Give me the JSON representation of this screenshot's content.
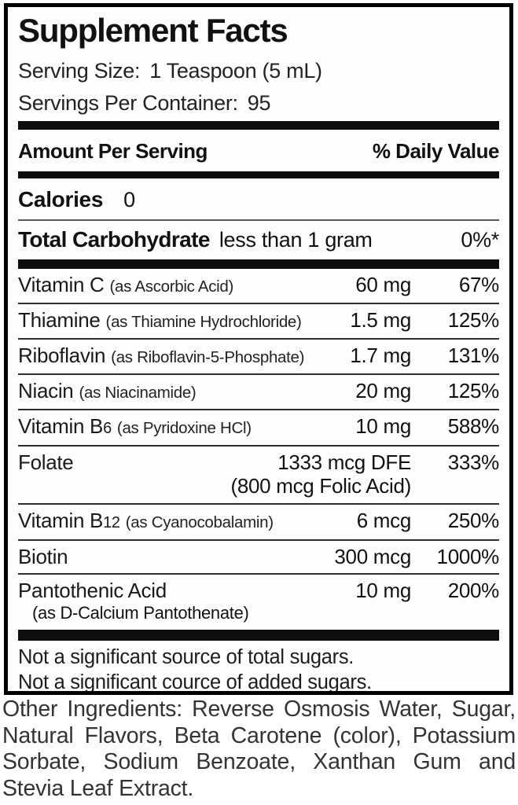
{
  "panel": {
    "title": "Supplement Facts",
    "serving_size": {
      "label": "Serving Size:",
      "value": "1 Teaspoon (5 mL)"
    },
    "servings_per_container": {
      "label": "Servings Per Container:",
      "value": "95"
    },
    "columns": {
      "amount_header": "Amount Per Serving",
      "dv_header": "% Daily Value"
    },
    "calories": {
      "label": "Calories",
      "value": "0"
    },
    "carbohydrate": {
      "label": "Total Carbohydrate",
      "amount": "less than 1 gram",
      "dv": "0%*"
    },
    "nutrients": [
      {
        "name": "Vitamin C",
        "note": "(as Ascorbic Acid)",
        "amount": "60 mg",
        "dv": "67%"
      },
      {
        "name": "Thiamine",
        "note": "(as Thiamine Hydrochloride)",
        "amount": "1.5 mg",
        "dv": "125%"
      },
      {
        "name": "Riboflavin",
        "note": "(as Riboflavin-5-Phosphate)",
        "amount": "1.7 mg",
        "dv": "131%"
      },
      {
        "name": "Niacin",
        "note": "(as Niacinamide)",
        "amount": "20 mg",
        "dv": "125%"
      },
      {
        "name": "Vitamin B",
        "name_sub": "6",
        "note": "(as Pyridoxine HCl)",
        "amount": "10 mg",
        "dv": "588%"
      },
      {
        "name": "Folate",
        "amount": "1333 mcg DFE",
        "dv": "333%",
        "amount_line2": "(800 mcg Folic Acid)"
      },
      {
        "name": "Vitamin B",
        "name_sub": "12",
        "note": "(as Cyanocobalamin)",
        "amount": "6 mcg",
        "dv": "250%"
      },
      {
        "name": "Biotin",
        "amount": "300 mcg",
        "dv": "1000%"
      },
      {
        "name": "Pantothenic Acid",
        "name_line2": "(as D-Calcium Pantothenate)",
        "amount": "10 mg",
        "dv": "200%"
      }
    ],
    "footnotes": [
      "Not a significant source of total sugars.",
      "Not a significant cource of added sugars."
    ]
  },
  "other_ingredients": "Other Ingredients: Reverse Osmosis Water, Sugar, Natural Flavors, Beta Carotene (color), Potassium Sorbate, Sodium Benzoate, Xanthan Gum and Stevia Leaf Extract."
}
